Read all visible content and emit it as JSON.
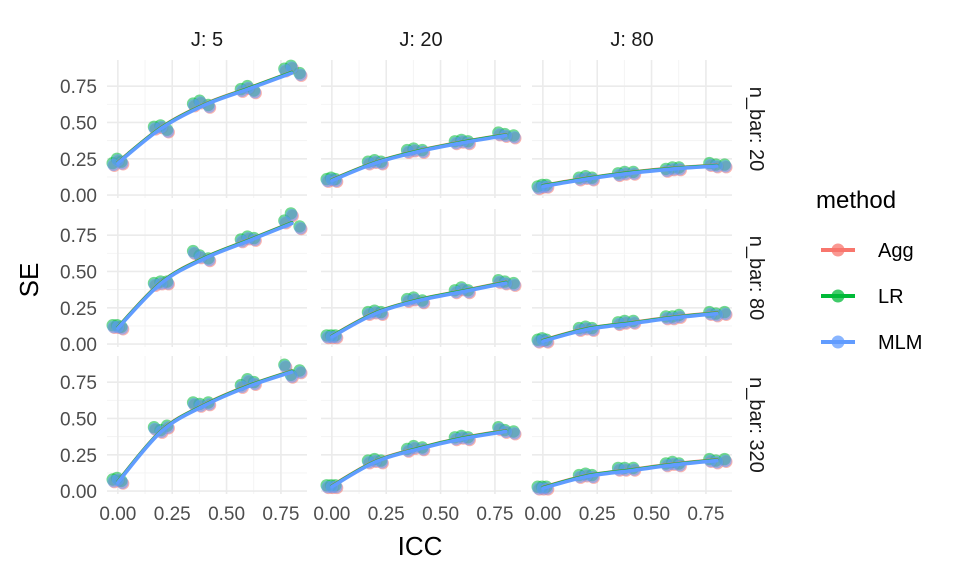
{
  "chart_data": {
    "type": "scatter",
    "facet_rows": {
      "name": "n_bar",
      "labels": [
        "n_bar: 20",
        "n_bar: 80",
        "n_bar: 320"
      ]
    },
    "facet_cols": {
      "name": "J",
      "labels": [
        "J: 5",
        "J: 20",
        "J: 80"
      ]
    },
    "xlabel": "ICC",
    "ylabel": "SE",
    "xlim": [
      -0.05,
      0.87
    ],
    "ylim": [
      -0.02,
      0.93
    ],
    "x_ticks": [
      "0.00",
      "0.25",
      "0.50",
      "0.75"
    ],
    "y_ticks": [
      "0.00",
      "0.25",
      "0.50",
      "0.75"
    ],
    "grid": true,
    "legend": {
      "title": "method",
      "position": "right",
      "entries": [
        {
          "name": "Agg",
          "color": "#F8766D"
        },
        {
          "name": "LR",
          "color": "#00BA38"
        },
        {
          "name": "MLM",
          "color": "#619CFF"
        }
      ]
    },
    "panels": [
      {
        "row": 0,
        "col": 0,
        "points": [
          [
            -0.02,
            0.21
          ],
          [
            0.0,
            0.24
          ],
          [
            0.02,
            0.22
          ],
          [
            0.17,
            0.46
          ],
          [
            0.2,
            0.47
          ],
          [
            0.23,
            0.44
          ],
          [
            0.35,
            0.62
          ],
          [
            0.38,
            0.64
          ],
          [
            0.42,
            0.61
          ],
          [
            0.57,
            0.72
          ],
          [
            0.6,
            0.74
          ],
          [
            0.63,
            0.71
          ],
          [
            0.77,
            0.86
          ],
          [
            0.8,
            0.88
          ],
          [
            0.84,
            0.83
          ]
        ]
      },
      {
        "row": 0,
        "col": 1,
        "points": [
          [
            -0.02,
            0.1
          ],
          [
            0.0,
            0.11
          ],
          [
            0.02,
            0.1
          ],
          [
            0.17,
            0.22
          ],
          [
            0.2,
            0.23
          ],
          [
            0.23,
            0.22
          ],
          [
            0.35,
            0.3
          ],
          [
            0.38,
            0.31
          ],
          [
            0.42,
            0.3
          ],
          [
            0.57,
            0.36
          ],
          [
            0.6,
            0.37
          ],
          [
            0.63,
            0.36
          ],
          [
            0.77,
            0.42
          ],
          [
            0.8,
            0.41
          ],
          [
            0.84,
            0.4
          ]
        ]
      },
      {
        "row": 0,
        "col": 2,
        "points": [
          [
            -0.02,
            0.05
          ],
          [
            0.0,
            0.06
          ],
          [
            0.02,
            0.06
          ],
          [
            0.17,
            0.11
          ],
          [
            0.2,
            0.12
          ],
          [
            0.23,
            0.11
          ],
          [
            0.35,
            0.14
          ],
          [
            0.38,
            0.15
          ],
          [
            0.42,
            0.15
          ],
          [
            0.57,
            0.17
          ],
          [
            0.6,
            0.18
          ],
          [
            0.63,
            0.18
          ],
          [
            0.77,
            0.21
          ],
          [
            0.8,
            0.2
          ],
          [
            0.84,
            0.2
          ]
        ]
      },
      {
        "row": 1,
        "col": 0,
        "points": [
          [
            -0.02,
            0.12
          ],
          [
            0.0,
            0.12
          ],
          [
            0.02,
            0.11
          ],
          [
            0.17,
            0.41
          ],
          [
            0.2,
            0.42
          ],
          [
            0.23,
            0.42
          ],
          [
            0.35,
            0.63
          ],
          [
            0.38,
            0.6
          ],
          [
            0.42,
            0.58
          ],
          [
            0.57,
            0.71
          ],
          [
            0.6,
            0.73
          ],
          [
            0.63,
            0.72
          ],
          [
            0.77,
            0.84
          ],
          [
            0.8,
            0.89
          ],
          [
            0.84,
            0.8
          ]
        ]
      },
      {
        "row": 1,
        "col": 1,
        "points": [
          [
            -0.02,
            0.05
          ],
          [
            0.0,
            0.05
          ],
          [
            0.02,
            0.05
          ],
          [
            0.17,
            0.21
          ],
          [
            0.2,
            0.22
          ],
          [
            0.23,
            0.21
          ],
          [
            0.35,
            0.3
          ],
          [
            0.38,
            0.31
          ],
          [
            0.42,
            0.29
          ],
          [
            0.57,
            0.36
          ],
          [
            0.6,
            0.38
          ],
          [
            0.63,
            0.36
          ],
          [
            0.77,
            0.43
          ],
          [
            0.8,
            0.42
          ],
          [
            0.84,
            0.41
          ]
        ]
      },
      {
        "row": 1,
        "col": 2,
        "points": [
          [
            -0.02,
            0.02
          ],
          [
            0.0,
            0.03
          ],
          [
            0.02,
            0.02
          ],
          [
            0.17,
            0.1
          ],
          [
            0.2,
            0.11
          ],
          [
            0.23,
            0.1
          ],
          [
            0.35,
            0.14
          ],
          [
            0.38,
            0.15
          ],
          [
            0.42,
            0.15
          ],
          [
            0.57,
            0.18
          ],
          [
            0.6,
            0.18
          ],
          [
            0.63,
            0.19
          ],
          [
            0.77,
            0.21
          ],
          [
            0.8,
            0.2
          ],
          [
            0.84,
            0.21
          ]
        ]
      },
      {
        "row": 2,
        "col": 0,
        "points": [
          [
            -0.02,
            0.07
          ],
          [
            0.0,
            0.08
          ],
          [
            0.02,
            0.06
          ],
          [
            0.17,
            0.43
          ],
          [
            0.2,
            0.41
          ],
          [
            0.23,
            0.44
          ],
          [
            0.35,
            0.6
          ],
          [
            0.38,
            0.59
          ],
          [
            0.42,
            0.6
          ],
          [
            0.57,
            0.72
          ],
          [
            0.6,
            0.76
          ],
          [
            0.63,
            0.74
          ],
          [
            0.77,
            0.86
          ],
          [
            0.8,
            0.79
          ],
          [
            0.84,
            0.82
          ]
        ]
      },
      {
        "row": 2,
        "col": 1,
        "points": [
          [
            -0.02,
            0.03
          ],
          [
            0.0,
            0.03
          ],
          [
            0.02,
            0.03
          ],
          [
            0.17,
            0.2
          ],
          [
            0.2,
            0.21
          ],
          [
            0.23,
            0.2
          ],
          [
            0.35,
            0.28
          ],
          [
            0.38,
            0.3
          ],
          [
            0.42,
            0.29
          ],
          [
            0.57,
            0.36
          ],
          [
            0.6,
            0.37
          ],
          [
            0.63,
            0.36
          ],
          [
            0.77,
            0.43
          ],
          [
            0.8,
            0.41
          ],
          [
            0.84,
            0.4
          ]
        ]
      },
      {
        "row": 2,
        "col": 2,
        "points": [
          [
            -0.02,
            0.02
          ],
          [
            0.0,
            0.02
          ],
          [
            0.02,
            0.02
          ],
          [
            0.17,
            0.1
          ],
          [
            0.2,
            0.11
          ],
          [
            0.23,
            0.1
          ],
          [
            0.35,
            0.15
          ],
          [
            0.38,
            0.15
          ],
          [
            0.42,
            0.15
          ],
          [
            0.57,
            0.18
          ],
          [
            0.6,
            0.19
          ],
          [
            0.63,
            0.18
          ],
          [
            0.77,
            0.21
          ],
          [
            0.8,
            0.2
          ],
          [
            0.84,
            0.21
          ]
        ]
      }
    ],
    "fit_lines": [
      {
        "row": 0,
        "col": 0,
        "x": [
          0.0,
          0.2,
          0.4,
          0.6,
          0.8
        ],
        "y": [
          0.22,
          0.46,
          0.62,
          0.73,
          0.84
        ]
      },
      {
        "row": 0,
        "col": 1,
        "x": [
          0.0,
          0.2,
          0.4,
          0.6,
          0.8
        ],
        "y": [
          0.1,
          0.22,
          0.3,
          0.36,
          0.41
        ]
      },
      {
        "row": 0,
        "col": 2,
        "x": [
          0.0,
          0.2,
          0.4,
          0.6,
          0.8
        ],
        "y": [
          0.06,
          0.11,
          0.15,
          0.18,
          0.2
        ]
      },
      {
        "row": 1,
        "col": 0,
        "x": [
          0.0,
          0.2,
          0.4,
          0.6,
          0.8
        ],
        "y": [
          0.11,
          0.42,
          0.59,
          0.71,
          0.83
        ]
      },
      {
        "row": 1,
        "col": 1,
        "x": [
          0.0,
          0.2,
          0.4,
          0.6,
          0.8
        ],
        "y": [
          0.05,
          0.21,
          0.3,
          0.36,
          0.42
        ]
      },
      {
        "row": 1,
        "col": 2,
        "x": [
          0.0,
          0.2,
          0.4,
          0.6,
          0.8
        ],
        "y": [
          0.02,
          0.1,
          0.14,
          0.18,
          0.21
        ]
      },
      {
        "row": 2,
        "col": 0,
        "x": [
          0.0,
          0.2,
          0.4,
          0.6,
          0.8
        ],
        "y": [
          0.06,
          0.41,
          0.59,
          0.72,
          0.82
        ]
      },
      {
        "row": 2,
        "col": 1,
        "x": [
          0.0,
          0.2,
          0.4,
          0.6,
          0.8
        ],
        "y": [
          0.03,
          0.2,
          0.29,
          0.36,
          0.41
        ]
      },
      {
        "row": 2,
        "col": 2,
        "x": [
          0.0,
          0.2,
          0.4,
          0.6,
          0.8
        ],
        "y": [
          0.02,
          0.1,
          0.14,
          0.18,
          0.21
        ]
      }
    ]
  }
}
